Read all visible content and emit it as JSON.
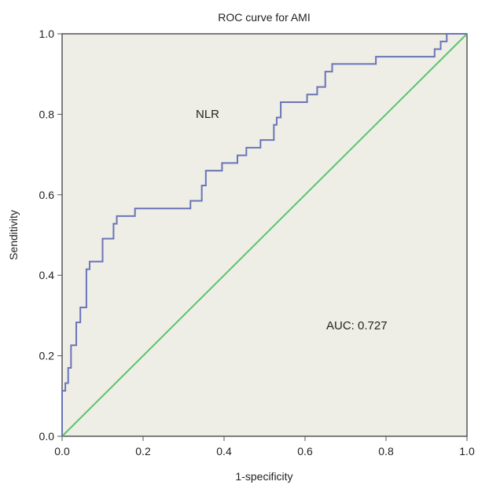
{
  "chart_data": {
    "type": "line",
    "title": "ROC curve for AMI",
    "xlabel": "1-specificity",
    "ylabel": "Senditivity",
    "xlim": [
      0.0,
      1.0
    ],
    "ylim": [
      0.0,
      1.0
    ],
    "xticks": [
      "0.0",
      "0.2",
      "0.4",
      "0.6",
      "0.8",
      "1.0"
    ],
    "yticks": [
      "0.0",
      "0.2",
      "0.4",
      "0.6",
      "0.8",
      "1.0"
    ],
    "grid": false,
    "annotations": [
      "NLR",
      "AUC: 0.727"
    ],
    "colors": {
      "roc": "#6a74b8",
      "reference": "#5cc46a",
      "plot_bg": "#eeeee6",
      "frame": "#555555"
    },
    "series": [
      {
        "values_x": [
          0.0,
          0.0,
          0.008,
          0.008,
          0.015,
          0.015,
          0.022,
          0.022,
          0.035,
          0.035,
          0.045,
          0.045,
          0.06,
          0.06,
          0.068,
          0.068,
          0.1,
          0.1,
          0.127,
          0.127,
          0.135,
          0.135,
          0.18,
          0.18,
          0.317,
          0.317,
          0.345,
          0.345,
          0.355,
          0.355,
          0.395,
          0.395,
          0.433,
          0.433,
          0.455,
          0.455,
          0.49,
          0.49,
          0.523,
          0.523,
          0.53,
          0.53,
          0.54,
          0.54,
          0.605,
          0.605,
          0.63,
          0.63,
          0.65,
          0.65,
          0.667,
          0.667,
          0.775,
          0.775,
          0.92,
          0.92,
          0.935,
          0.935,
          0.95,
          0.95,
          0.97,
          1.0
        ],
        "values_y": [
          0.0,
          0.113,
          0.113,
          0.132,
          0.132,
          0.17,
          0.17,
          0.226,
          0.226,
          0.283,
          0.283,
          0.32,
          0.32,
          0.415,
          0.415,
          0.434,
          0.434,
          0.491,
          0.491,
          0.528,
          0.528,
          0.547,
          0.547,
          0.566,
          0.566,
          0.585,
          0.585,
          0.623,
          0.623,
          0.66,
          0.66,
          0.679,
          0.679,
          0.698,
          0.698,
          0.717,
          0.717,
          0.736,
          0.736,
          0.774,
          0.774,
          0.792,
          0.792,
          0.83,
          0.83,
          0.849,
          0.849,
          0.868,
          0.868,
          0.906,
          0.906,
          0.925,
          0.925,
          0.943,
          0.943,
          0.962,
          0.962,
          0.981,
          0.981,
          1.0,
          1.0,
          1.0
        ]
      },
      {
        "values_x": [
          0.0,
          1.0
        ],
        "values_y": [
          0.0,
          1.0
        ]
      }
    ]
  }
}
